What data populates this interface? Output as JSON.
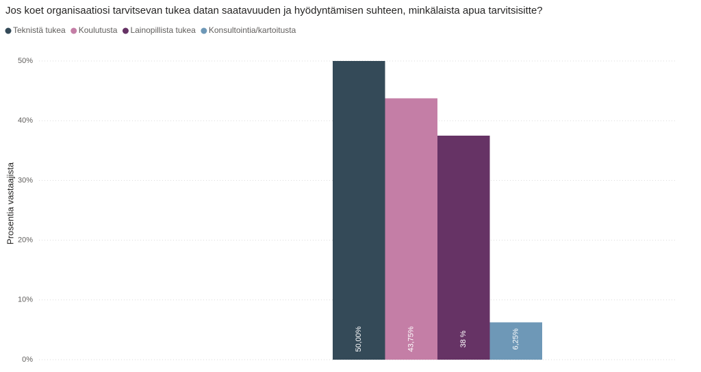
{
  "chart_data": {
    "type": "bar",
    "title": "Jos koet organisaatiosi tarvitsevan tukea datan saatavuuden ja hyödyntämisen suhteen, minkälaista apua tarvitsisitte?",
    "ylabel": "Prosentia vastaajista",
    "categories": [
      null
    ],
    "series": [
      {
        "name": "Teknistä tukea",
        "color": "#344a58",
        "values": [
          50
        ],
        "value_labels": [
          "50,00%"
        ]
      },
      {
        "name": "Koulutusta",
        "color": "#c47ea6",
        "values": [
          43.75
        ],
        "value_labels": [
          "43,75%"
        ]
      },
      {
        "name": "Lainopillista tukea",
        "color": "#663365",
        "values": [
          37.5
        ],
        "value_labels": [
          "38 %"
        ]
      },
      {
        "name": "Konsultointia/kartoitusta",
        "color": "#6e98b7",
        "values": [
          6.25
        ],
        "value_labels": [
          "6,25%"
        ]
      }
    ],
    "ylim": [
      0,
      50
    ],
    "yticks": [
      {
        "value": 0,
        "label": "0%"
      },
      {
        "value": 10,
        "label": "10%"
      },
      {
        "value": 20,
        "label": "20%"
      },
      {
        "value": 30,
        "label": "30%"
      },
      {
        "value": 40,
        "label": "40%"
      },
      {
        "value": 50,
        "label": "50%"
      }
    ],
    "grid": true,
    "legend": "top-left"
  }
}
